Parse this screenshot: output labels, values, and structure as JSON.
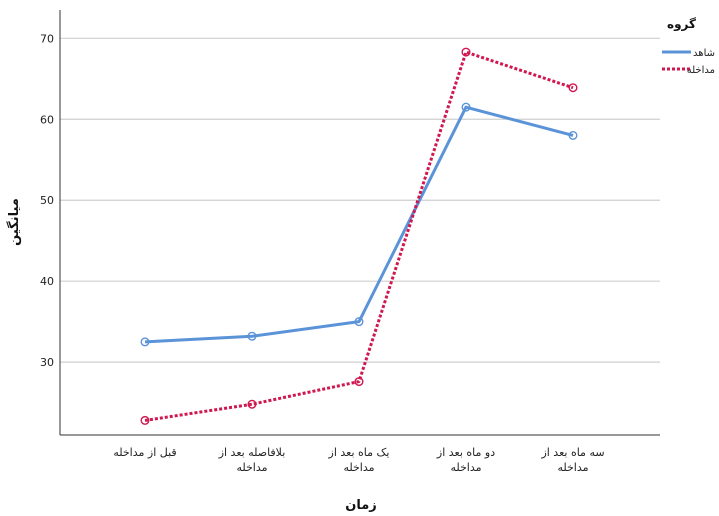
{
  "chart_data": {
    "type": "line",
    "categories": [
      [
        "قبل از مداخله"
      ],
      [
        "بلافاصله بعد از",
        "مداخله"
      ],
      [
        "یک ماه بعد از",
        "مداخله"
      ],
      [
        "دو ماه بعد از",
        "مداخله"
      ],
      [
        "سه ماه بعد از",
        "مداخله"
      ]
    ],
    "series": [
      {
        "name": "شاهد",
        "values": [
          32.5,
          33.2,
          35.0,
          61.5,
          58.0
        ],
        "color": "#5b93d9",
        "style": "solid"
      },
      {
        "name": "مداخله",
        "values": [
          22.8,
          24.8,
          27.6,
          68.3,
          63.9
        ],
        "color": "#d0174f",
        "style": "dotted"
      }
    ],
    "xlabel": "زمان",
    "ylabel": "میانگین",
    "ylim": [
      21,
      73.5
    ],
    "yticks": [
      30,
      40,
      50,
      60,
      70
    ],
    "grid": true,
    "legend_title": "گروه",
    "legend_position": "top-right"
  }
}
